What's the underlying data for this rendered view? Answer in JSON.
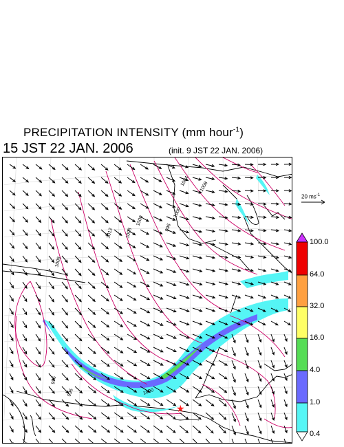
{
  "title": {
    "main_prefix": "PRECIPITATION INTENSITY (mm hour",
    "main_exp": "-1",
    "main_suffix": ")",
    "time": "15 JST 22 JAN. 2006",
    "init": "(init. 9 JST 22 JAN. 2006)"
  },
  "reference_vector": {
    "label": "20 ms",
    "label_exp": "-1"
  },
  "colorbar": {
    "levels": [
      "0.4",
      "1.0",
      "4.0",
      "16.0",
      "32.0",
      "64.0",
      "100.0"
    ],
    "colors": [
      "#ffffff",
      "#55f5f5",
      "#6a6aff",
      "#55dd55",
      "#ffff66",
      "#ffa040",
      "#ee0000",
      "#cc33ff"
    ]
  },
  "map": {
    "contour_labels": [
      "1008",
      "1012",
      "1008",
      "1000",
      "996",
      "1000",
      "1004",
      "1008",
      "996",
      "996",
      "1000"
    ],
    "contour_color": "#cc0066",
    "marker": {
      "symbol": "★",
      "color": "#ff2020"
    }
  }
}
